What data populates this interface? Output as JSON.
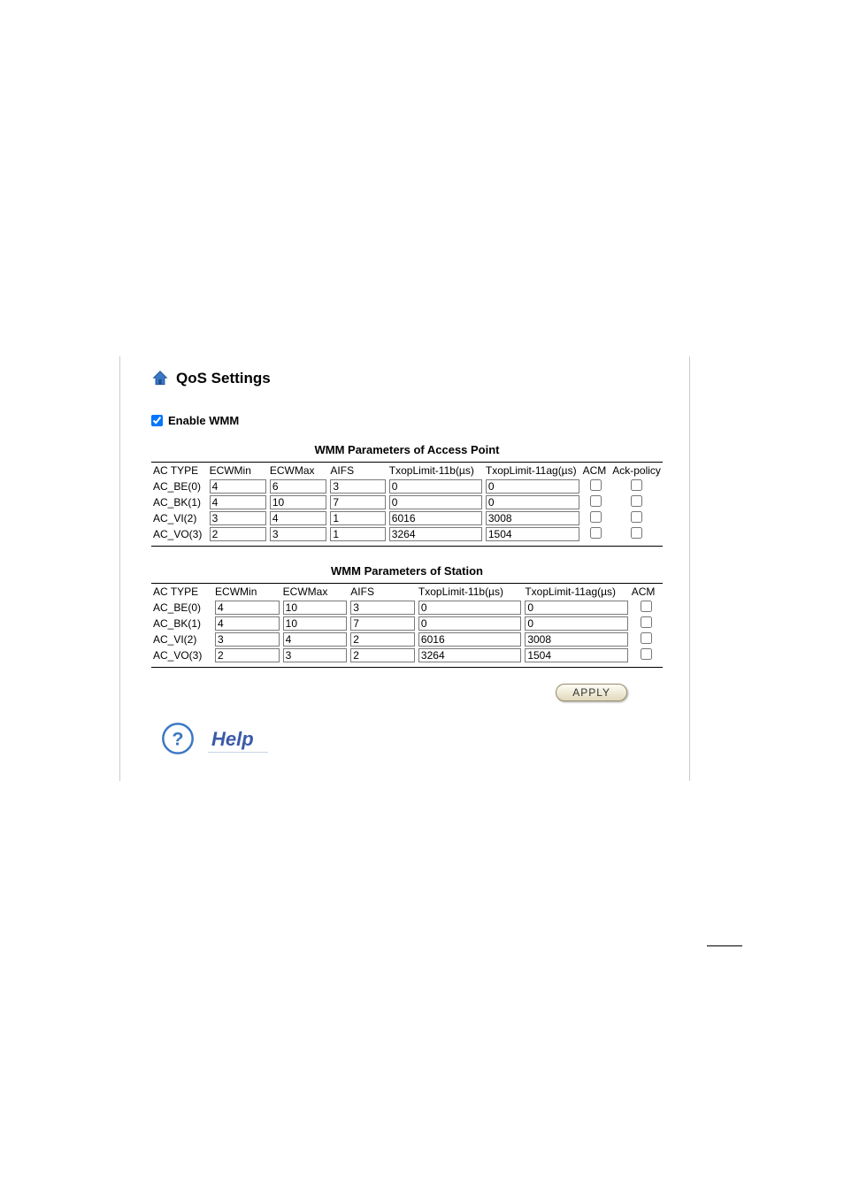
{
  "page": {
    "title": "QoS Settings",
    "enable_label": "Enable WMM",
    "enable_checked": true
  },
  "tables": {
    "ap": {
      "title": "WMM Parameters of Access Point",
      "columns": [
        "AC TYPE",
        "ECWMin",
        "ECWMax",
        "AIFS",
        "TxopLimit-11b(µs)",
        "TxopLimit-11ag(µs)",
        "ACM",
        "Ack-policy"
      ],
      "has_ack_policy": true,
      "rows": [
        {
          "ac": "AC_BE(0)",
          "ecwmin": "4",
          "ecwmax": "6",
          "aifs": "3",
          "tx11b": "0",
          "tx11ag": "0",
          "acm": false,
          "ack": false
        },
        {
          "ac": "AC_BK(1)",
          "ecwmin": "4",
          "ecwmax": "10",
          "aifs": "7",
          "tx11b": "0",
          "tx11ag": "0",
          "acm": false,
          "ack": false
        },
        {
          "ac": "AC_VI(2)",
          "ecwmin": "3",
          "ecwmax": "4",
          "aifs": "1",
          "tx11b": "6016",
          "tx11ag": "3008",
          "acm": false,
          "ack": false
        },
        {
          "ac": "AC_VO(3)",
          "ecwmin": "2",
          "ecwmax": "3",
          "aifs": "1",
          "tx11b": "3264",
          "tx11ag": "1504",
          "acm": false,
          "ack": false
        }
      ]
    },
    "sta": {
      "title": "WMM Parameters of Station",
      "columns": [
        "AC TYPE",
        "ECWMin",
        "ECWMax",
        "AIFS",
        "TxopLimit-11b(µs)",
        "TxopLimit-11ag(µs)",
        "ACM"
      ],
      "has_ack_policy": false,
      "rows": [
        {
          "ac": "AC_BE(0)",
          "ecwmin": "4",
          "ecwmax": "10",
          "aifs": "3",
          "tx11b": "0",
          "tx11ag": "0",
          "acm": false
        },
        {
          "ac": "AC_BK(1)",
          "ecwmin": "4",
          "ecwmax": "10",
          "aifs": "7",
          "tx11b": "0",
          "tx11ag": "0",
          "acm": false
        },
        {
          "ac": "AC_VI(2)",
          "ecwmin": "3",
          "ecwmax": "4",
          "aifs": "2",
          "tx11b": "6016",
          "tx11ag": "3008",
          "acm": false
        },
        {
          "ac": "AC_VO(3)",
          "ecwmin": "2",
          "ecwmax": "3",
          "aifs": "2",
          "tx11b": "3264",
          "tx11ag": "1504",
          "acm": false
        }
      ]
    }
  },
  "buttons": {
    "apply": "APPLY"
  },
  "help": {
    "label": "Help"
  },
  "style": {
    "border_color": "#cccccc",
    "help_color": "#3b5aa8"
  }
}
